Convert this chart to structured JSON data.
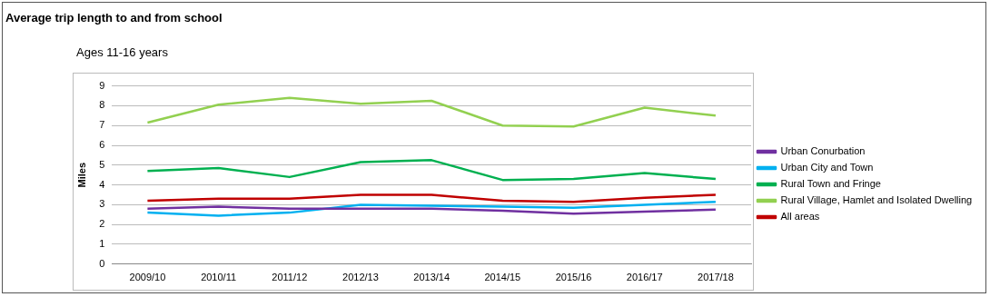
{
  "chart_data": {
    "type": "line",
    "title": "Average trip length to and from school",
    "subtitle": "Ages 11-16 years",
    "ylabel": "Miles",
    "categories": [
      "2009/10",
      "2010/11",
      "2011/12",
      "2012/13",
      "2013/14",
      "2014/15",
      "2015/16",
      "2016/17",
      "2017/18"
    ],
    "series": [
      {
        "name": "Urban Conurbation",
        "color": "#7030a0",
        "values": [
          2.8,
          2.9,
          2.8,
          2.8,
          2.8,
          2.7,
          2.55,
          2.65,
          2.75
        ]
      },
      {
        "name": "Urban City and Town",
        "color": "#00b0f0",
        "values": [
          2.6,
          2.45,
          2.6,
          3.0,
          2.95,
          2.9,
          2.85,
          3.0,
          3.15
        ]
      },
      {
        "name": "Rural Town and Fringe",
        "color": "#00b050",
        "values": [
          4.7,
          4.85,
          4.4,
          5.15,
          5.25,
          4.25,
          4.3,
          4.6,
          4.3
        ]
      },
      {
        "name": "Rural Village, Hamlet and Isolated Dwelling",
        "color": "#92d050",
        "values": [
          7.15,
          8.05,
          8.4,
          8.1,
          8.25,
          7.0,
          6.95,
          7.9,
          7.5
        ]
      },
      {
        "name": "All areas",
        "color": "#c00000",
        "values": [
          3.2,
          3.3,
          3.3,
          3.5,
          3.5,
          3.2,
          3.15,
          3.35,
          3.5
        ]
      }
    ],
    "ylim": [
      0,
      9
    ],
    "yticks": [
      0,
      1,
      2,
      3,
      4,
      5,
      6,
      7,
      8,
      9
    ],
    "grid": "y",
    "legend": "right",
    "marker": "none",
    "line_style": "solid"
  }
}
